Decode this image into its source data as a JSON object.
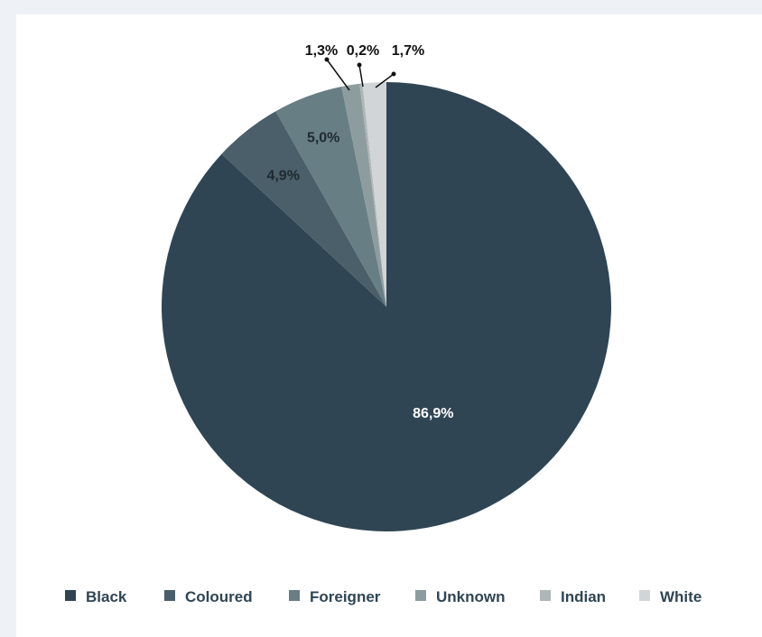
{
  "chart_data": {
    "type": "pie",
    "title": "",
    "start_angle_deg": 0,
    "direction": "clockwise",
    "slices": [
      {
        "name": "Black",
        "value": 86.9,
        "label": "86,9%",
        "color": "#2f4554"
      },
      {
        "name": "Coloured",
        "value": 4.9,
        "label": "4,9%",
        "color": "#4a5f69"
      },
      {
        "name": "Foreigner",
        "value": 5.0,
        "label": "5,0%",
        "color": "#677e84"
      },
      {
        "name": "Unknown",
        "value": 1.3,
        "label": "1,3%",
        "color": "#8d9c9f"
      },
      {
        "name": "Indian",
        "value": 0.2,
        "label": "0,2%",
        "color": "#aeb6b8"
      },
      {
        "name": "White",
        "value": 1.7,
        "label": "1,7%",
        "color": "#d2d5d7"
      }
    ],
    "legend_placement": "bottom"
  }
}
